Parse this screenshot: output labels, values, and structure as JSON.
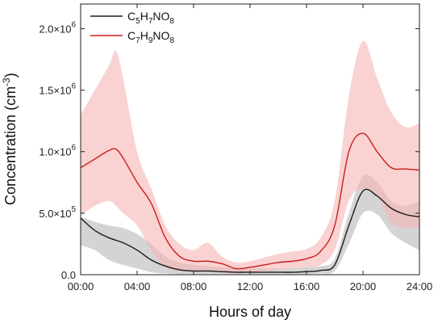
{
  "chart_data": {
    "type": "line",
    "xlabel": "Hours of day",
    "ylabel_main": "Concentration (cm",
    "ylabel_sup": "-3",
    "ylabel_close": ")",
    "x_ticks": [
      {
        "value": 0,
        "label": "00:00"
      },
      {
        "value": 4,
        "label": "04:00"
      },
      {
        "value": 8,
        "label": "08:00"
      },
      {
        "value": 12,
        "label": "12:00"
      },
      {
        "value": 16,
        "label": "16:00"
      },
      {
        "value": 20,
        "label": "20:00"
      },
      {
        "value": 24,
        "label": "24:00"
      }
    ],
    "y_ticks": [
      {
        "value": 0,
        "mant": "0.0",
        "exp": ""
      },
      {
        "value": 500000,
        "mant": "5.0×10",
        "exp": "5"
      },
      {
        "value": 1000000,
        "mant": "1.0×10",
        "exp": "6"
      },
      {
        "value": 1500000,
        "mant": "1.5×10",
        "exp": "6"
      },
      {
        "value": 2000000,
        "mant": "2.0×10",
        "exp": "6"
      }
    ],
    "xlim": [
      0,
      24
    ],
    "ylim": [
      0,
      2200000
    ],
    "grid": false,
    "legend_position": "top-left",
    "series": [
      {
        "name": "C5H7NO8",
        "legend_parts": [
          {
            "t": "C",
            "s": false
          },
          {
            "t": "5",
            "s": true
          },
          {
            "t": "H",
            "s": false
          },
          {
            "t": "7",
            "s": true
          },
          {
            "t": "NO",
            "s": false
          },
          {
            "t": "8",
            "s": true
          }
        ],
        "line_color": "#1a1a1a",
        "band_color": "#b8b8b8",
        "x": [
          0,
          1,
          2,
          3,
          4,
          5,
          6,
          7,
          8,
          9,
          10,
          11,
          12,
          13,
          14,
          15,
          16,
          17,
          18,
          19,
          20,
          21,
          22,
          23,
          24
        ],
        "values": [
          460000,
          360000,
          300000,
          260000,
          200000,
          120000,
          70000,
          40000,
          30000,
          30000,
          25000,
          20000,
          20000,
          20000,
          20000,
          20000,
          25000,
          35000,
          80000,
          400000,
          680000,
          640000,
          540000,
          490000,
          470000
        ],
        "band_upper": [
          470000,
          430000,
          400000,
          380000,
          330000,
          250000,
          150000,
          100000,
          80000,
          70000,
          60000,
          50000,
          50000,
          50000,
          50000,
          50000,
          60000,
          70000,
          130000,
          500000,
          800000,
          750000,
          600000,
          560000,
          600000
        ],
        "band_lower": [
          240000,
          200000,
          120000,
          80000,
          50000,
          20000,
          10000,
          5000,
          5000,
          5000,
          5000,
          5000,
          5000,
          5000,
          5000,
          5000,
          5000,
          10000,
          30000,
          250000,
          500000,
          490000,
          340000,
          260000,
          200000
        ]
      },
      {
        "name": "C7H9NO8",
        "legend_parts": [
          {
            "t": "C",
            "s": false
          },
          {
            "t": "7",
            "s": true
          },
          {
            "t": "H",
            "s": false
          },
          {
            "t": "9",
            "s": true
          },
          {
            "t": "NO",
            "s": false
          },
          {
            "t": "8",
            "s": true
          }
        ],
        "line_color": "#c81e1e",
        "band_color": "#f6b4b4",
        "x": [
          0,
          1,
          2,
          2.5,
          3,
          4,
          5,
          6,
          7,
          8,
          9,
          10,
          11,
          12,
          13,
          14,
          15,
          16,
          17,
          18,
          19,
          20,
          21,
          22,
          23,
          24
        ],
        "values": [
          870000,
          940000,
          1010000,
          1020000,
          950000,
          750000,
          580000,
          300000,
          150000,
          110000,
          110000,
          90000,
          50000,
          60000,
          80000,
          100000,
          110000,
          130000,
          190000,
          400000,
          1000000,
          1150000,
          1000000,
          870000,
          860000,
          850000
        ],
        "band_upper": [
          1300000,
          1500000,
          1700000,
          1820000,
          1600000,
          1000000,
          700000,
          400000,
          250000,
          200000,
          260000,
          150000,
          100000,
          110000,
          140000,
          170000,
          190000,
          210000,
          300000,
          600000,
          1450000,
          1900000,
          1600000,
          1320000,
          1200000,
          1230000
        ],
        "band_lower": [
          480000,
          560000,
          600000,
          560000,
          500000,
          400000,
          200000,
          60000,
          30000,
          30000,
          30000,
          20000,
          10000,
          20000,
          30000,
          40000,
          50000,
          60000,
          80000,
          200000,
          600000,
          700000,
          640000,
          420000,
          380000,
          380000
        ]
      }
    ]
  }
}
